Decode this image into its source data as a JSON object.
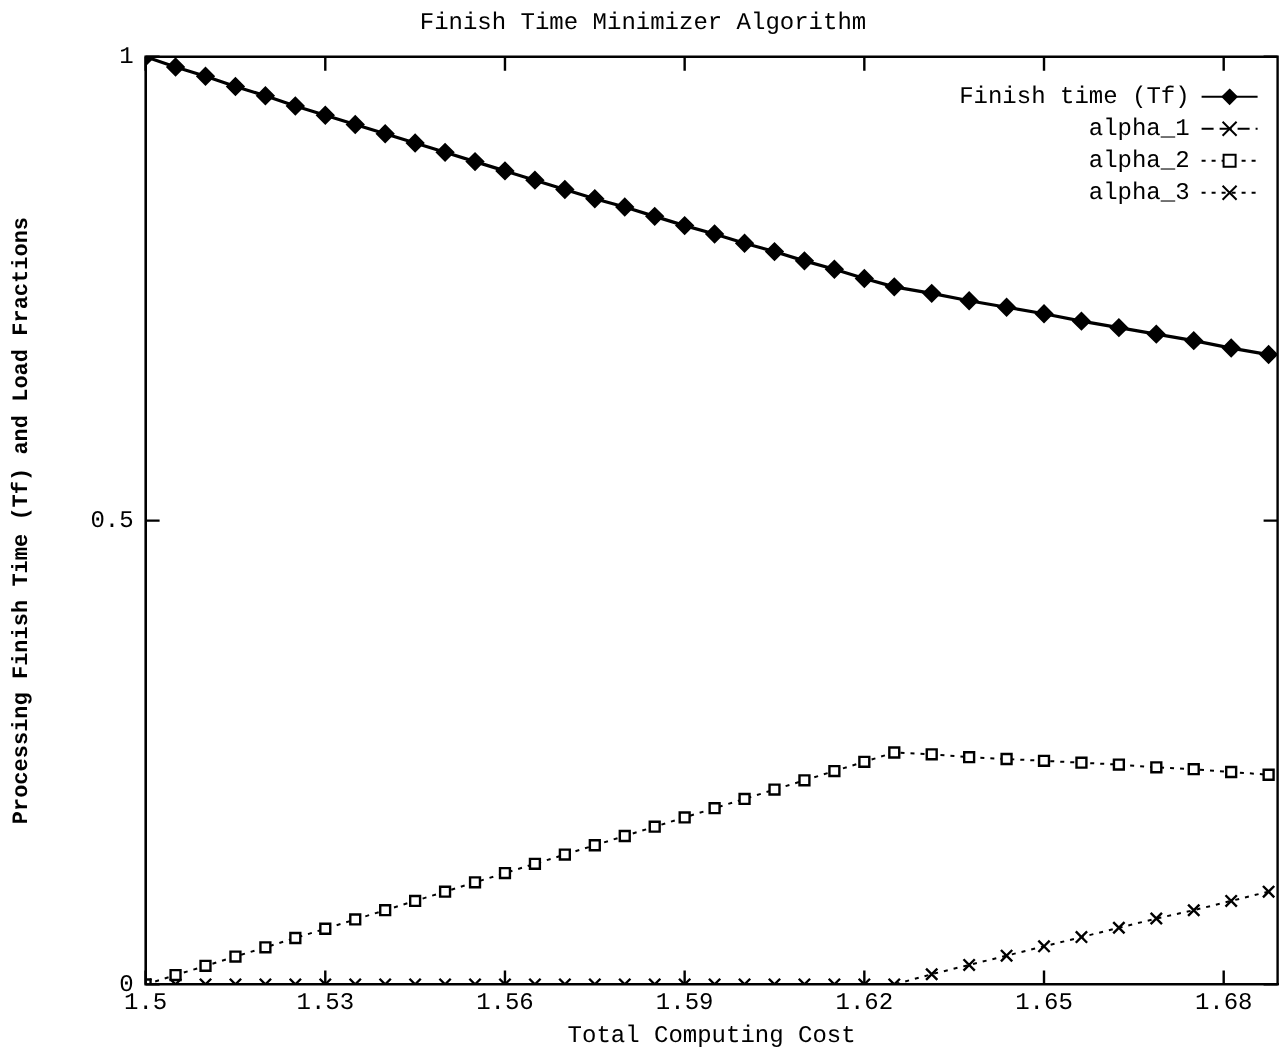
{
  "chart_data": {
    "type": "line",
    "title": "Finish Time Minimizer Algorithm",
    "xlabel": "Total Computing Cost",
    "ylabel": "Processing Finish Time (Tf) and Load Fractions",
    "x": [
      1.5,
      1.505,
      1.51,
      1.515,
      1.52,
      1.525,
      1.53,
      1.535,
      1.54,
      1.545,
      1.55,
      1.555,
      1.56,
      1.565,
      1.57,
      1.575,
      1.58,
      1.585,
      1.59,
      1.595,
      1.6,
      1.605,
      1.61,
      1.615,
      1.62,
      1.625,
      1.63125,
      1.6375,
      1.64375,
      1.65,
      1.65625,
      1.6625,
      1.66875,
      1.675,
      1.68125,
      1.6875
    ],
    "series": [
      {
        "name": "Finish time (Tf)",
        "color": "#000000",
        "marker": "diamond",
        "line_style": "solid",
        "values": [
          1.0,
          0.989,
          0.979,
          0.968,
          0.958,
          0.947,
          0.937,
          0.927,
          0.917,
          0.907,
          0.897,
          0.887,
          0.877,
          0.867,
          0.857,
          0.847,
          0.838,
          0.828,
          0.818,
          0.809,
          0.799,
          0.79,
          0.78,
          0.771,
          0.761,
          0.752,
          0.745,
          0.737,
          0.73,
          0.723,
          0.715,
          0.708,
          0.701,
          0.694,
          0.686,
          0.679
        ]
      },
      {
        "name": "alpha_1",
        "color": "#000000",
        "marker": "cross",
        "line_style": "dashed",
        "values": [
          null,
          null,
          null,
          null,
          null,
          null,
          null,
          null,
          null,
          null,
          null,
          null,
          null,
          null,
          null,
          null,
          null,
          null,
          null,
          null,
          null,
          null,
          null,
          null,
          null,
          null,
          null,
          null,
          null,
          null,
          null,
          null,
          null,
          null,
          null,
          null
        ]
      },
      {
        "name": "alpha_2",
        "color": "#000000",
        "marker": "square",
        "line_style": "dotted",
        "values": [
          0,
          0.01,
          0.02,
          0.03,
          0.04,
          0.05,
          0.06,
          0.07,
          0.08,
          0.09,
          0.1,
          0.11,
          0.12,
          0.13,
          0.14,
          0.15,
          0.16,
          0.17,
          0.18,
          0.19,
          0.2,
          0.21,
          0.22,
          0.23,
          0.24,
          0.25,
          0.248,
          0.245,
          0.243,
          0.241,
          0.239,
          0.237,
          0.234,
          0.232,
          0.229,
          0.226
        ]
      },
      {
        "name": "alpha_3",
        "color": "#000000",
        "marker": "cross",
        "line_style": "dotted",
        "values": [
          0,
          0,
          0,
          0,
          0,
          0,
          0,
          0,
          0,
          0,
          0,
          0,
          0,
          0,
          0,
          0,
          0,
          0,
          0,
          0,
          0,
          0,
          0,
          0,
          0,
          0,
          0.011,
          0.021,
          0.031,
          0.041,
          0.051,
          0.061,
          0.071,
          0.08,
          0.09,
          0.1
        ]
      }
    ],
    "xlim": [
      1.5,
      1.689
    ],
    "xticks": [
      1.5,
      1.53,
      1.56,
      1.59,
      1.62,
      1.65,
      1.68
    ],
    "ylim": [
      0,
      1
    ],
    "yticks": [
      0,
      0.5,
      1
    ],
    "grid": false,
    "legend": "top right"
  }
}
